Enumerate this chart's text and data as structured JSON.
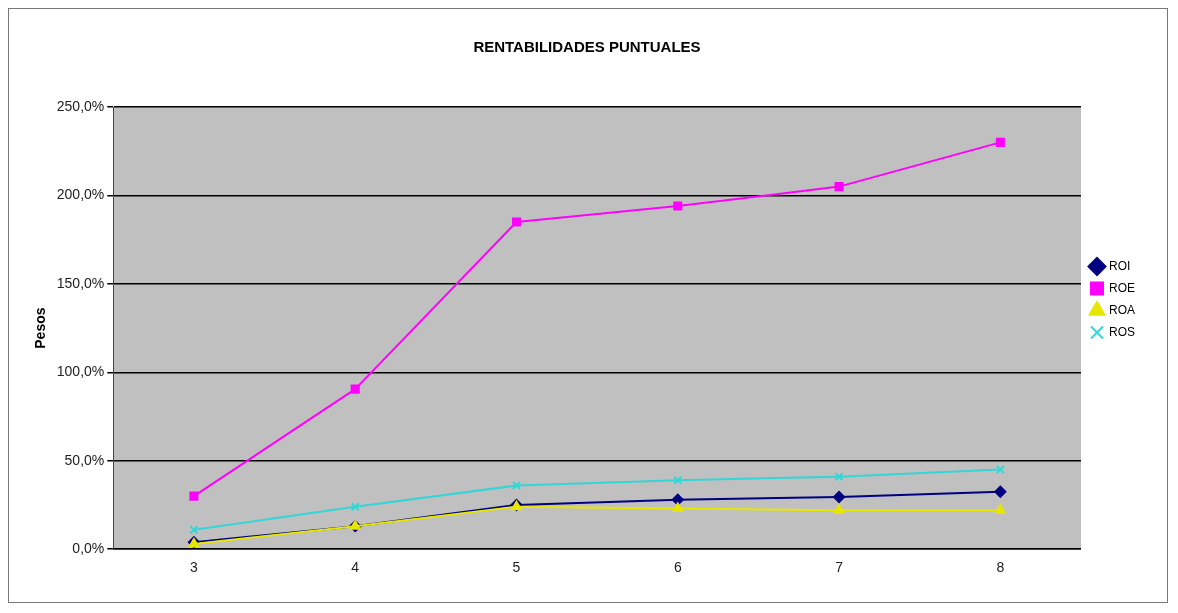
{
  "chart_data": {
    "type": "line",
    "title": "RENTABILIDADES PUNTUALES",
    "ylabel": "Pesos",
    "categories": [
      "3",
      "4",
      "5",
      "6",
      "7",
      "8"
    ],
    "series": [
      {
        "name": "ROI",
        "color": "#000080",
        "marker": "diamond",
        "values": [
          4,
          13,
          25,
          28,
          29.5,
          32.5
        ]
      },
      {
        "name": "ROE",
        "color": "#ff00ff",
        "marker": "square",
        "values": [
          30,
          90.5,
          185,
          194,
          205,
          230
        ]
      },
      {
        "name": "ROA",
        "color": "#e6e600",
        "marker": "triangle",
        "values": [
          3,
          13,
          24,
          23,
          22,
          22
        ]
      },
      {
        "name": "ROS",
        "color": "#33d6d6",
        "marker": "cross",
        "values": [
          11,
          24,
          36,
          39,
          41,
          45
        ]
      }
    ],
    "ylim": [
      0,
      250
    ],
    "yticks": [
      {
        "value": 0,
        "label": "0,0%"
      },
      {
        "value": 50,
        "label": "50,0%"
      },
      {
        "value": 100,
        "label": "100,0%"
      },
      {
        "value": 150,
        "label": "150,0%"
      },
      {
        "value": 200,
        "label": "200,0%"
      },
      {
        "value": 250,
        "label": "250,0%"
      }
    ],
    "grid": "y",
    "legend": "right",
    "line_style": "solid"
  }
}
